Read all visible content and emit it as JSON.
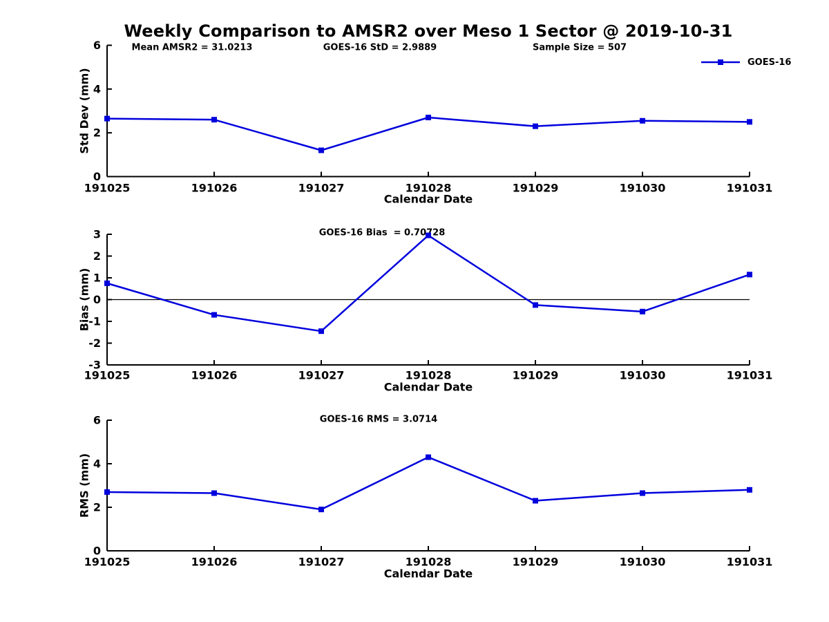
{
  "title": "Weekly Comparison to AMSR2 over Meso 1 Sector @ 2019-10-31",
  "annotations": {
    "mean_amsr2": "Mean AMSR2 = 31.0213",
    "goes16_std": "GOES-16 StD = 2.9889",
    "sample_size": "Sample Size = 507",
    "goes16_bias": "GOES-16 Bias  = 0.70728",
    "goes16_rms": "GOES-16 RMS = 3.0714"
  },
  "legend": {
    "series_label": "GOES-16",
    "position": "top-right",
    "marker": "filled-square"
  },
  "colors": {
    "line": "#0000dd",
    "axis": "#000000",
    "background": "#ffffff"
  },
  "chart_data": [
    {
      "type": "line",
      "name": "std-dev",
      "x": [
        "191025",
        "191026",
        "191027",
        "191028",
        "191029",
        "191030",
        "191031"
      ],
      "series": [
        {
          "name": "GOES-16",
          "values": [
            2.65,
            2.6,
            1.2,
            2.7,
            2.3,
            2.55,
            2.5
          ]
        }
      ],
      "xlabel": "Calendar Date",
      "ylabel": "Std Dev (mm)",
      "ylim": [
        0,
        6
      ],
      "yticks": [
        0,
        2,
        4,
        6
      ],
      "zero_line": false,
      "grid": false,
      "legend_position": "top-right"
    },
    {
      "type": "line",
      "name": "bias",
      "x": [
        "191025",
        "191026",
        "191027",
        "191028",
        "191029",
        "191030",
        "191031"
      ],
      "series": [
        {
          "name": "GOES-16",
          "values": [
            0.75,
            -0.7,
            -1.45,
            2.95,
            -0.25,
            -0.55,
            1.15
          ]
        }
      ],
      "xlabel": "Calendar Date",
      "ylabel": "Bias (mm)",
      "ylim": [
        -3,
        3
      ],
      "yticks": [
        -3,
        -2,
        -1,
        0,
        1,
        2,
        3
      ],
      "zero_line": true,
      "grid": false,
      "legend_position": "none"
    },
    {
      "type": "line",
      "name": "rms",
      "x": [
        "191025",
        "191026",
        "191027",
        "191028",
        "191029",
        "191030",
        "191031"
      ],
      "series": [
        {
          "name": "GOES-16",
          "values": [
            2.7,
            2.65,
            1.9,
            4.3,
            2.3,
            2.65,
            2.8
          ]
        }
      ],
      "xlabel": "Calendar Date",
      "ylabel": "RMS (mm)",
      "ylim": [
        0,
        6
      ],
      "yticks": [
        0,
        2,
        4,
        6
      ],
      "zero_line": false,
      "grid": false,
      "legend_position": "none"
    }
  ]
}
